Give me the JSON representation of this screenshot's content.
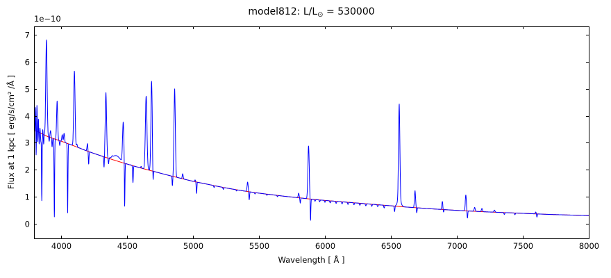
{
  "chart_data": {
    "type": "line",
    "title": "model812: L/L⊙ = 530000",
    "title_parts": {
      "prefix": "model812: L/L",
      "subscript": "⊙",
      "suffix": " = 530000"
    },
    "xlabel": "Wavelength [ Å ]",
    "ylabel": "Flux at 1 kpc [ erg/s/cm² /Å ]",
    "offset_label": "1e−10",
    "xlim": [
      3795,
      8000
    ],
    "ylim": [
      -0.55,
      7.32
    ],
    "xticks": [
      4000,
      4500,
      5000,
      5500,
      6000,
      6500,
      7000,
      7500,
      8000
    ],
    "yticks": [
      0,
      1,
      2,
      3,
      4,
      5,
      6,
      7
    ],
    "grid": false,
    "legend": "none",
    "axis_color": "#000000",
    "series": [
      {
        "name": "observed-spectrum",
        "color": "#0000ff"
      },
      {
        "name": "continuum-fit",
        "color": "#ff0000"
      }
    ],
    "continuum_format": [
      "wavelength_A",
      "flux_1e-10"
    ],
    "continuum": [
      [
        3795,
        3.45
      ],
      [
        3900,
        3.23
      ],
      [
        4000,
        3.06
      ],
      [
        4100,
        2.88
      ],
      [
        4200,
        2.69
      ],
      [
        4300,
        2.52
      ],
      [
        4400,
        2.36
      ],
      [
        4500,
        2.21
      ],
      [
        4600,
        2.07
      ],
      [
        4700,
        1.94
      ],
      [
        4800,
        1.81
      ],
      [
        4900,
        1.69
      ],
      [
        5000,
        1.57
      ],
      [
        5100,
        1.47
      ],
      [
        5200,
        1.37
      ],
      [
        5300,
        1.28
      ],
      [
        5400,
        1.2
      ],
      [
        5500,
        1.13
      ],
      [
        5600,
        1.07
      ],
      [
        5700,
        1.01
      ],
      [
        5800,
        0.96
      ],
      [
        5900,
        0.905
      ],
      [
        6000,
        0.86
      ],
      [
        6100,
        0.82
      ],
      [
        6200,
        0.78
      ],
      [
        6300,
        0.74
      ],
      [
        6400,
        0.7
      ],
      [
        6500,
        0.66
      ],
      [
        6600,
        0.62
      ],
      [
        6700,
        0.585
      ],
      [
        6800,
        0.55
      ],
      [
        6900,
        0.52
      ],
      [
        7000,
        0.49
      ],
      [
        7100,
        0.465
      ],
      [
        7200,
        0.44
      ],
      [
        7300,
        0.42
      ],
      [
        7400,
        0.4
      ],
      [
        7500,
        0.38
      ],
      [
        7600,
        0.36
      ],
      [
        7700,
        0.34
      ],
      [
        7800,
        0.325
      ],
      [
        7900,
        0.31
      ],
      [
        8000,
        0.295
      ]
    ],
    "lines_format": [
      "wavelength_A",
      "peak_flux_1e-10",
      "sigma_A"
    ],
    "lines": [
      [
        3806,
        4.35,
        2
      ],
      [
        3811,
        2.5,
        2
      ],
      [
        3817,
        4.4,
        2
      ],
      [
        3823,
        3.0,
        2
      ],
      [
        3828,
        3.9,
        2
      ],
      [
        3834,
        2.95,
        2
      ],
      [
        3840,
        3.55,
        2
      ],
      [
        3847,
        3.05,
        2
      ],
      [
        3854,
        0.85,
        2.2
      ],
      [
        3861,
        3.5,
        2
      ],
      [
        3868,
        2.95,
        2
      ],
      [
        3875,
        3.3,
        2
      ],
      [
        3889,
        6.82,
        5
      ],
      [
        3910,
        3.05,
        2.5
      ],
      [
        3920,
        3.45,
        3.5
      ],
      [
        3932,
        2.85,
        2.5
      ],
      [
        3949,
        0.25,
        2.2
      ],
      [
        3970,
        4.55,
        4
      ],
      [
        3990,
        2.9,
        2.5
      ],
      [
        4009,
        3.3,
        3.5
      ],
      [
        4023,
        3.35,
        3.5
      ],
      [
        4050,
        0.4,
        2.2
      ],
      [
        4101,
        5.66,
        5
      ],
      [
        4120,
        2.95,
        3
      ],
      [
        4144,
        2.8,
        3.5
      ],
      [
        4200,
        2.97,
        3.5
      ],
      [
        4209,
        2.2,
        2.5
      ],
      [
        4326,
        2.05,
        2.5
      ],
      [
        4340,
        4.86,
        5
      ],
      [
        4360,
        2.2,
        2.5
      ],
      [
        4388,
        2.42,
        3.5
      ],
      [
        4420,
        2.52,
        28
      ],
      [
        4471,
        3.73,
        5
      ],
      [
        4482,
        0.5,
        2.2
      ],
      [
        4528,
        2.18,
        3.5
      ],
      [
        4545,
        1.52,
        2.5
      ],
      [
        4607,
        2.12,
        3.5
      ],
      [
        4645,
        4.73,
        6
      ],
      [
        4686,
        5.28,
        5
      ],
      [
        4697,
        1.4,
        2.2
      ],
      [
        4844,
        1.4,
        2.5
      ],
      [
        4861,
        5.0,
        5
      ],
      [
        4922,
        1.85,
        3.5
      ],
      [
        5016,
        1.62,
        3.5
      ],
      [
        5027,
        1.12,
        2.5
      ],
      [
        5160,
        1.34,
        3
      ],
      [
        5230,
        1.27,
        3
      ],
      [
        5330,
        1.21,
        3
      ],
      [
        5414,
        1.54,
        4
      ],
      [
        5426,
        0.88,
        2.5
      ],
      [
        5470,
        1.1,
        3
      ],
      [
        5560,
        1.05,
        3
      ],
      [
        5640,
        1.0,
        3
      ],
      [
        5801,
        1.13,
        3.5
      ],
      [
        5813,
        0.76,
        2.5
      ],
      [
        5876,
        2.88,
        5
      ],
      [
        5891,
        0.1,
        2.2
      ],
      [
        5925,
        0.83,
        3
      ],
      [
        5960,
        0.81,
        3
      ],
      [
        6000,
        0.79,
        3
      ],
      [
        6040,
        0.77,
        3
      ],
      [
        6085,
        0.75,
        3
      ],
      [
        6130,
        0.73,
        3
      ],
      [
        6175,
        0.71,
        3
      ],
      [
        6220,
        0.7,
        3
      ],
      [
        6265,
        0.68,
        3
      ],
      [
        6310,
        0.66,
        3
      ],
      [
        6355,
        0.64,
        3
      ],
      [
        6400,
        0.63,
        3
      ],
      [
        6449,
        0.58,
        3
      ],
      [
        6528,
        0.44,
        2.5
      ],
      [
        6563,
        4.19,
        5
      ],
      [
        6563,
        0.88,
        13
      ],
      [
        6683,
        1.22,
        4
      ],
      [
        6696,
        0.4,
        2.5
      ],
      [
        6890,
        0.82,
        3.5
      ],
      [
        6899,
        0.42,
        2.5
      ],
      [
        7068,
        1.06,
        4
      ],
      [
        7080,
        0.2,
        2.5
      ],
      [
        7135,
        0.6,
        4
      ],
      [
        7190,
        0.56,
        4
      ],
      [
        7285,
        0.5,
        4
      ],
      [
        7360,
        0.34,
        3
      ],
      [
        7440,
        0.33,
        3
      ],
      [
        7598,
        0.43,
        3
      ],
      [
        7607,
        0.24,
        2.5
      ]
    ]
  }
}
